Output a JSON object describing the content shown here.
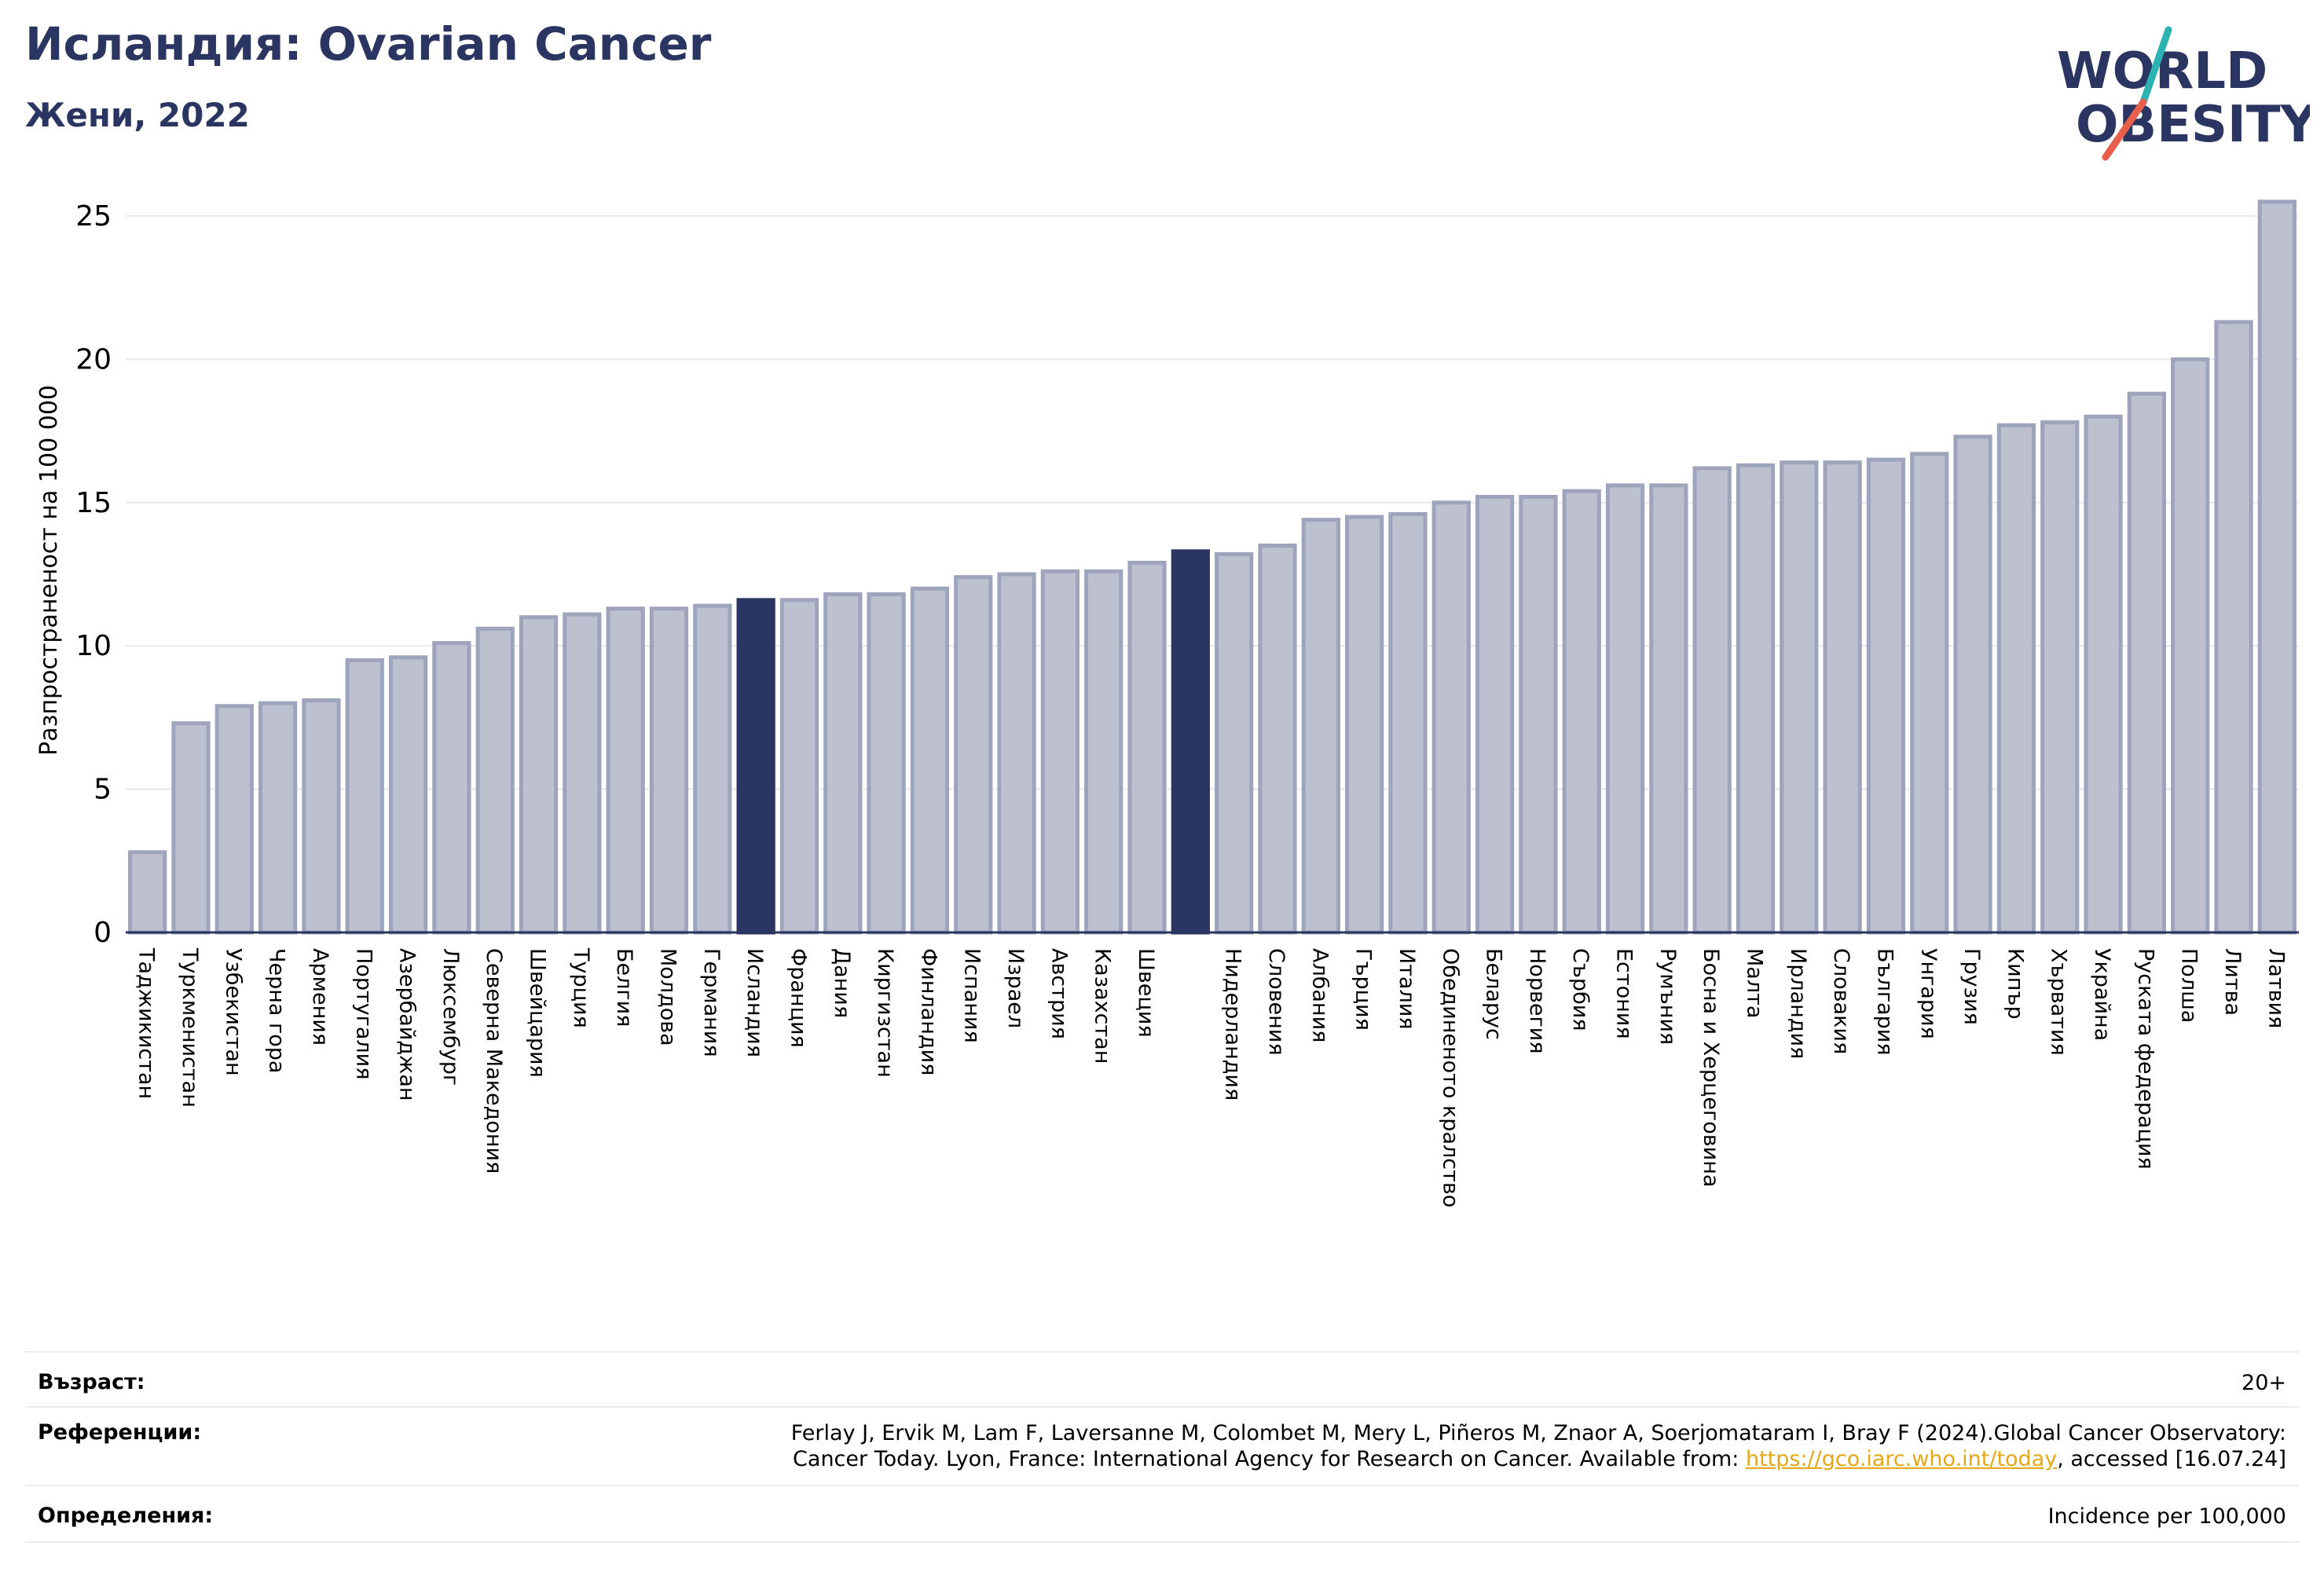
{
  "header": {
    "title": "Исландия: Ovarian Cancer",
    "subtitle": "Жени, 2022",
    "logo_line1": "WORLD",
    "logo_line2": "OBESITY"
  },
  "colors": {
    "bar": "#bcc0cf",
    "bar_edge": "#9ea4bb",
    "highlight": "#2b3561",
    "title": "#2b3561",
    "link": "#e6a817",
    "logo_teal": "#2bb3b1",
    "logo_red": "#e8604c"
  },
  "chart_data": {
    "type": "bar",
    "ylabel": "Разпространеност  на 100 000",
    "ylim": [
      0,
      26
    ],
    "yticks": [
      0,
      5,
      10,
      15,
      20,
      25
    ],
    "grid": true,
    "categories": [
      "Таджикистан",
      "Туркменистан",
      "Узбекистан",
      "Черна гора",
      "Армения",
      "Португалия",
      "Азербайджан",
      "Люксембург",
      "Северна Македония",
      "Швейцария",
      "Турция",
      "Белгия",
      "Молдова",
      "Германия",
      "Исландия",
      "Франция",
      "Дания",
      "Киргизстан",
      "Финландия",
      "Испания",
      "Израел",
      "Австрия",
      "Казахстан",
      "Швеция",
      "",
      "Нидерландия",
      "Словения",
      "Албания",
      "Гърция",
      "Италия",
      "Обединеното кралство",
      "Беларус",
      "Норвегия",
      "Сърбия",
      "Естония",
      "Румъния",
      "Босна и Херцеговина",
      "Малта",
      "Ирландия",
      "Словакия",
      "България",
      "Унгария",
      "Грузия",
      "Кипър",
      "Хърватия",
      "Украйна",
      "Руската федерация",
      "Полша",
      "Литва",
      "Латвия"
    ],
    "values": [
      2.8,
      7.3,
      7.9,
      8.0,
      8.1,
      9.5,
      9.6,
      10.1,
      10.6,
      11.0,
      11.1,
      11.3,
      11.3,
      11.4,
      11.6,
      11.6,
      11.8,
      11.8,
      12.0,
      12.4,
      12.5,
      12.6,
      12.6,
      12.9,
      13.3,
      13.2,
      13.5,
      14.4,
      14.5,
      14.6,
      15.0,
      15.2,
      15.2,
      15.4,
      15.6,
      15.6,
      16.2,
      16.3,
      16.4,
      16.4,
      16.5,
      16.7,
      17.3,
      17.7,
      17.8,
      18.0,
      18.8,
      20.0,
      21.3,
      25.5
    ],
    "highlighted": [
      14,
      24
    ]
  },
  "info": {
    "age_label": "Възраст:",
    "age_value": "20+",
    "ref_label": "Референции:",
    "ref_line1": "Ferlay J, Ervik M, Lam F, Laversanne M, Colombet M, Mery L, Piñeros M, Znaor A, Soerjomataram I, Bray F (2024).Global Cancer Observatory:",
    "ref_line2_pre": "Cancer Today. Lyon, France: International Agency for Research on Cancer. Available from: ",
    "ref_link": "https://gco.iarc.who.int/today",
    "ref_line2_post": ", accessed [16.07.24]",
    "def_label": "Определения:",
    "def_value": "Incidence per 100,000"
  }
}
